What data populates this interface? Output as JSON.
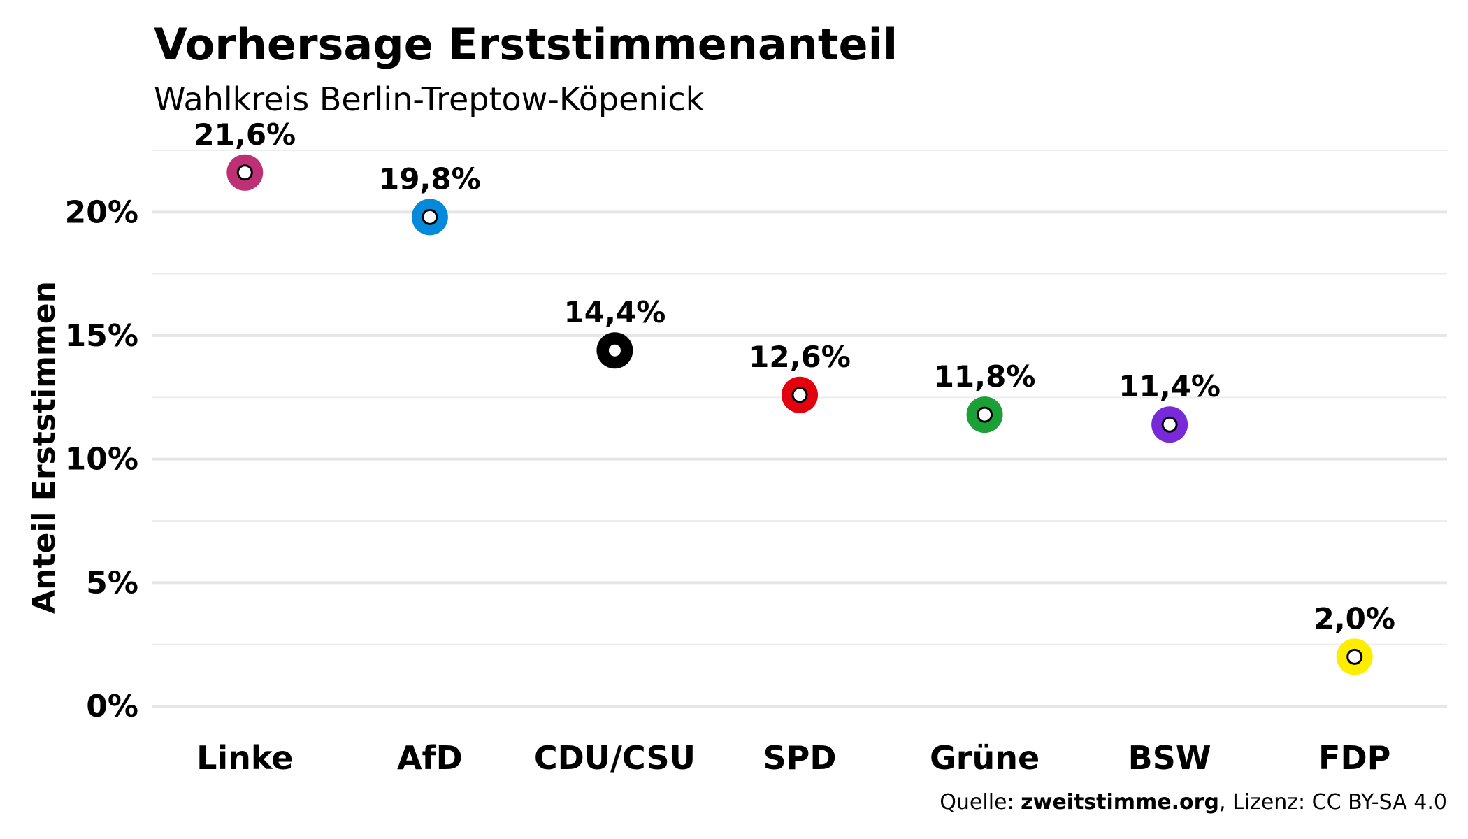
{
  "chart_data": {
    "type": "scatter",
    "title": "Vorhersage Erststimmenanteil",
    "subtitle": "Wahlkreis Berlin-Treptow-Köpenick",
    "xlabel": "",
    "ylabel": "Anteil Erststimmen",
    "ylim": [
      0,
      0.225
    ],
    "yticks": [
      {
        "value": 0,
        "label": "0%"
      },
      {
        "value": 0.05,
        "label": "5%"
      },
      {
        "value": 0.1,
        "label": "10%"
      },
      {
        "value": 0.15,
        "label": "15%"
      },
      {
        "value": 0.2,
        "label": "20%"
      }
    ],
    "grid": true,
    "legend": "none",
    "categories": [
      "Linke",
      "AfD",
      "CDU/CSU",
      "SPD",
      "Grüne",
      "BSW",
      "FDP"
    ],
    "points": [
      {
        "party": "Linke",
        "value": 0.216,
        "label": "21,6%",
        "color": "#be3075"
      },
      {
        "party": "AfD",
        "value": 0.198,
        "label": "19,8%",
        "color": "#0489db"
      },
      {
        "party": "CDU/CSU",
        "value": 0.144,
        "label": "14,4%",
        "color": "#000000"
      },
      {
        "party": "SPD",
        "value": 0.126,
        "label": "12,6%",
        "color": "#e3000f"
      },
      {
        "party": "Grüne",
        "value": 0.118,
        "label": "11,8%",
        "color": "#1aa037"
      },
      {
        "party": "BSW",
        "value": 0.114,
        "label": "11,4%",
        "color": "#792ad8"
      },
      {
        "party": "FDP",
        "value": 0.02,
        "label": "2,0%",
        "color": "#ffed00"
      }
    ],
    "source": {
      "prefix": "Quelle: ",
      "site": "zweitstimme.org",
      "suffix": ", Lizenz: CC BY-SA 4.0"
    }
  }
}
